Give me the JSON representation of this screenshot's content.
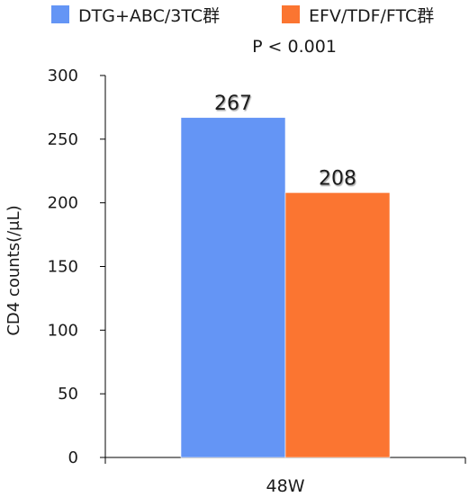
{
  "chart_data": {
    "type": "bar",
    "categories": [
      "48W"
    ],
    "series": [
      {
        "name": "DTG+ABC/3TC群",
        "values": [
          267
        ],
        "color": "#6495f5"
      },
      {
        "name": "EFV/TDF/FTC群",
        "values": [
          208
        ],
        "color": "#fb7531"
      }
    ],
    "annotation": "P < 0.001",
    "ylabel": "CD4 counts(/μL)",
    "xlabel": "",
    "ylim": [
      0,
      300
    ],
    "yticks": [
      0,
      50,
      100,
      150,
      200,
      250,
      300
    ],
    "grid": false,
    "legend_position": "top"
  }
}
